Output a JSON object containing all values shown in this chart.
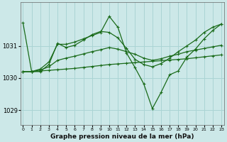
{
  "background_color": "#cce8e8",
  "grid_color": "#aad4d4",
  "line_color": "#1a6b1a",
  "title": "Graphe pression niveau de la mer (hPa)",
  "ylabel_vals": [
    1029,
    1030,
    1031
  ],
  "xlim": [
    -0.3,
    23.3
  ],
  "ylim": [
    1028.55,
    1032.35
  ],
  "xticks": [
    0,
    1,
    2,
    3,
    4,
    5,
    6,
    7,
    8,
    9,
    10,
    11,
    12,
    13,
    14,
    15,
    16,
    17,
    18,
    19,
    20,
    21,
    22,
    23
  ],
  "series": [
    {
      "name": "flat_rising",
      "y": [
        1030.2,
        1030.2,
        1030.22,
        1030.24,
        1030.26,
        1030.28,
        1030.3,
        1030.33,
        1030.36,
        1030.39,
        1030.42,
        1030.44,
        1030.46,
        1030.48,
        1030.5,
        1030.52,
        1030.54,
        1030.56,
        1030.58,
        1030.6,
        1030.63,
        1030.66,
        1030.69,
        1030.72
      ],
      "lw": 0.9,
      "marker": "+"
    },
    {
      "name": "moderate_rising",
      "y": [
        1030.2,
        1030.2,
        1030.25,
        1030.35,
        1030.55,
        1030.62,
        1030.68,
        1030.75,
        1030.82,
        1030.88,
        1030.95,
        1030.9,
        1030.82,
        1030.74,
        1030.62,
        1030.55,
        1030.6,
        1030.68,
        1030.74,
        1030.82,
        1030.87,
        1030.92,
        1030.97,
        1031.02
      ],
      "lw": 0.9,
      "marker": "+"
    },
    {
      "name": "peak_line",
      "y": [
        1030.2,
        1030.2,
        1030.28,
        1030.5,
        1031.05,
        1031.05,
        1031.12,
        1031.22,
        1031.32,
        1031.42,
        1031.92,
        1031.58,
        1030.78,
        1030.32,
        1029.82,
        1029.05,
        1029.55,
        1030.1,
        1030.22,
        1030.65,
        1030.9,
        1031.22,
        1031.48,
        1031.68
      ],
      "lw": 0.9,
      "marker": "+"
    },
    {
      "name": "top_start_line",
      "y": [
        1031.72,
        1030.2,
        1030.2,
        1030.42,
        1031.08,
        1030.95,
        1031.02,
        1031.18,
        1031.35,
        1031.45,
        1031.42,
        1031.25,
        1030.92,
        1030.58,
        1030.42,
        1030.35,
        1030.45,
        1030.62,
        1030.82,
        1031.0,
        1031.18,
        1031.42,
        1031.58,
        1031.68
      ],
      "lw": 0.9,
      "marker": "+"
    }
  ]
}
